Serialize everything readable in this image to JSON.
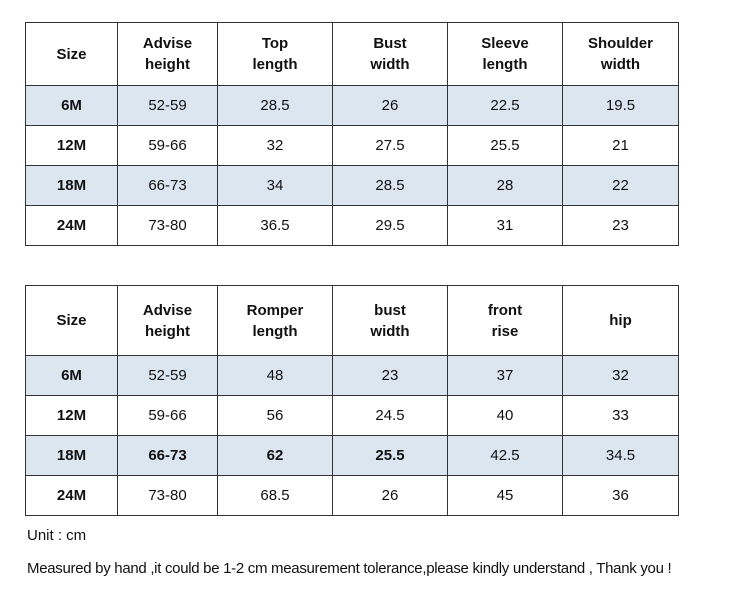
{
  "tables": [
    {
      "header": [
        "Size",
        "Advise\nheight",
        "Top\nlength",
        "Bust\nwidth",
        "Sleeve\nlength",
        "Shoulder\nwidth"
      ],
      "rows": [
        [
          "6M",
          "52-59",
          "28.5",
          "26",
          "22.5",
          "19.5"
        ],
        [
          "12M",
          "59-66",
          "32",
          "27.5",
          "25.5",
          "21"
        ],
        [
          "18M",
          "66-73",
          "34",
          "28.5",
          "28",
          "22"
        ],
        [
          "24M",
          "73-80",
          "36.5",
          "29.5",
          "31",
          "23"
        ]
      ]
    },
    {
      "header": [
        "Size",
        "Advise\nheight",
        "Romper\nlength",
        "bust\nwidth",
        "front\nrise",
        "hip"
      ],
      "rows": [
        [
          "6M",
          "52-59",
          "48",
          "23",
          "37",
          "32"
        ],
        [
          "12M",
          "59-66",
          "56",
          "24.5",
          "40",
          "33"
        ],
        [
          "18M",
          "66-73",
          "62",
          "25.5",
          "42.5",
          "34.5"
        ],
        [
          "24M",
          "73-80",
          "68.5",
          "26",
          "45",
          "36"
        ]
      ]
    }
  ],
  "notes": [
    "Unit : cm",
    "Measured by hand ,it could be 1-2 cm measurement tolerance,please kindly understand , Thank you !"
  ]
}
